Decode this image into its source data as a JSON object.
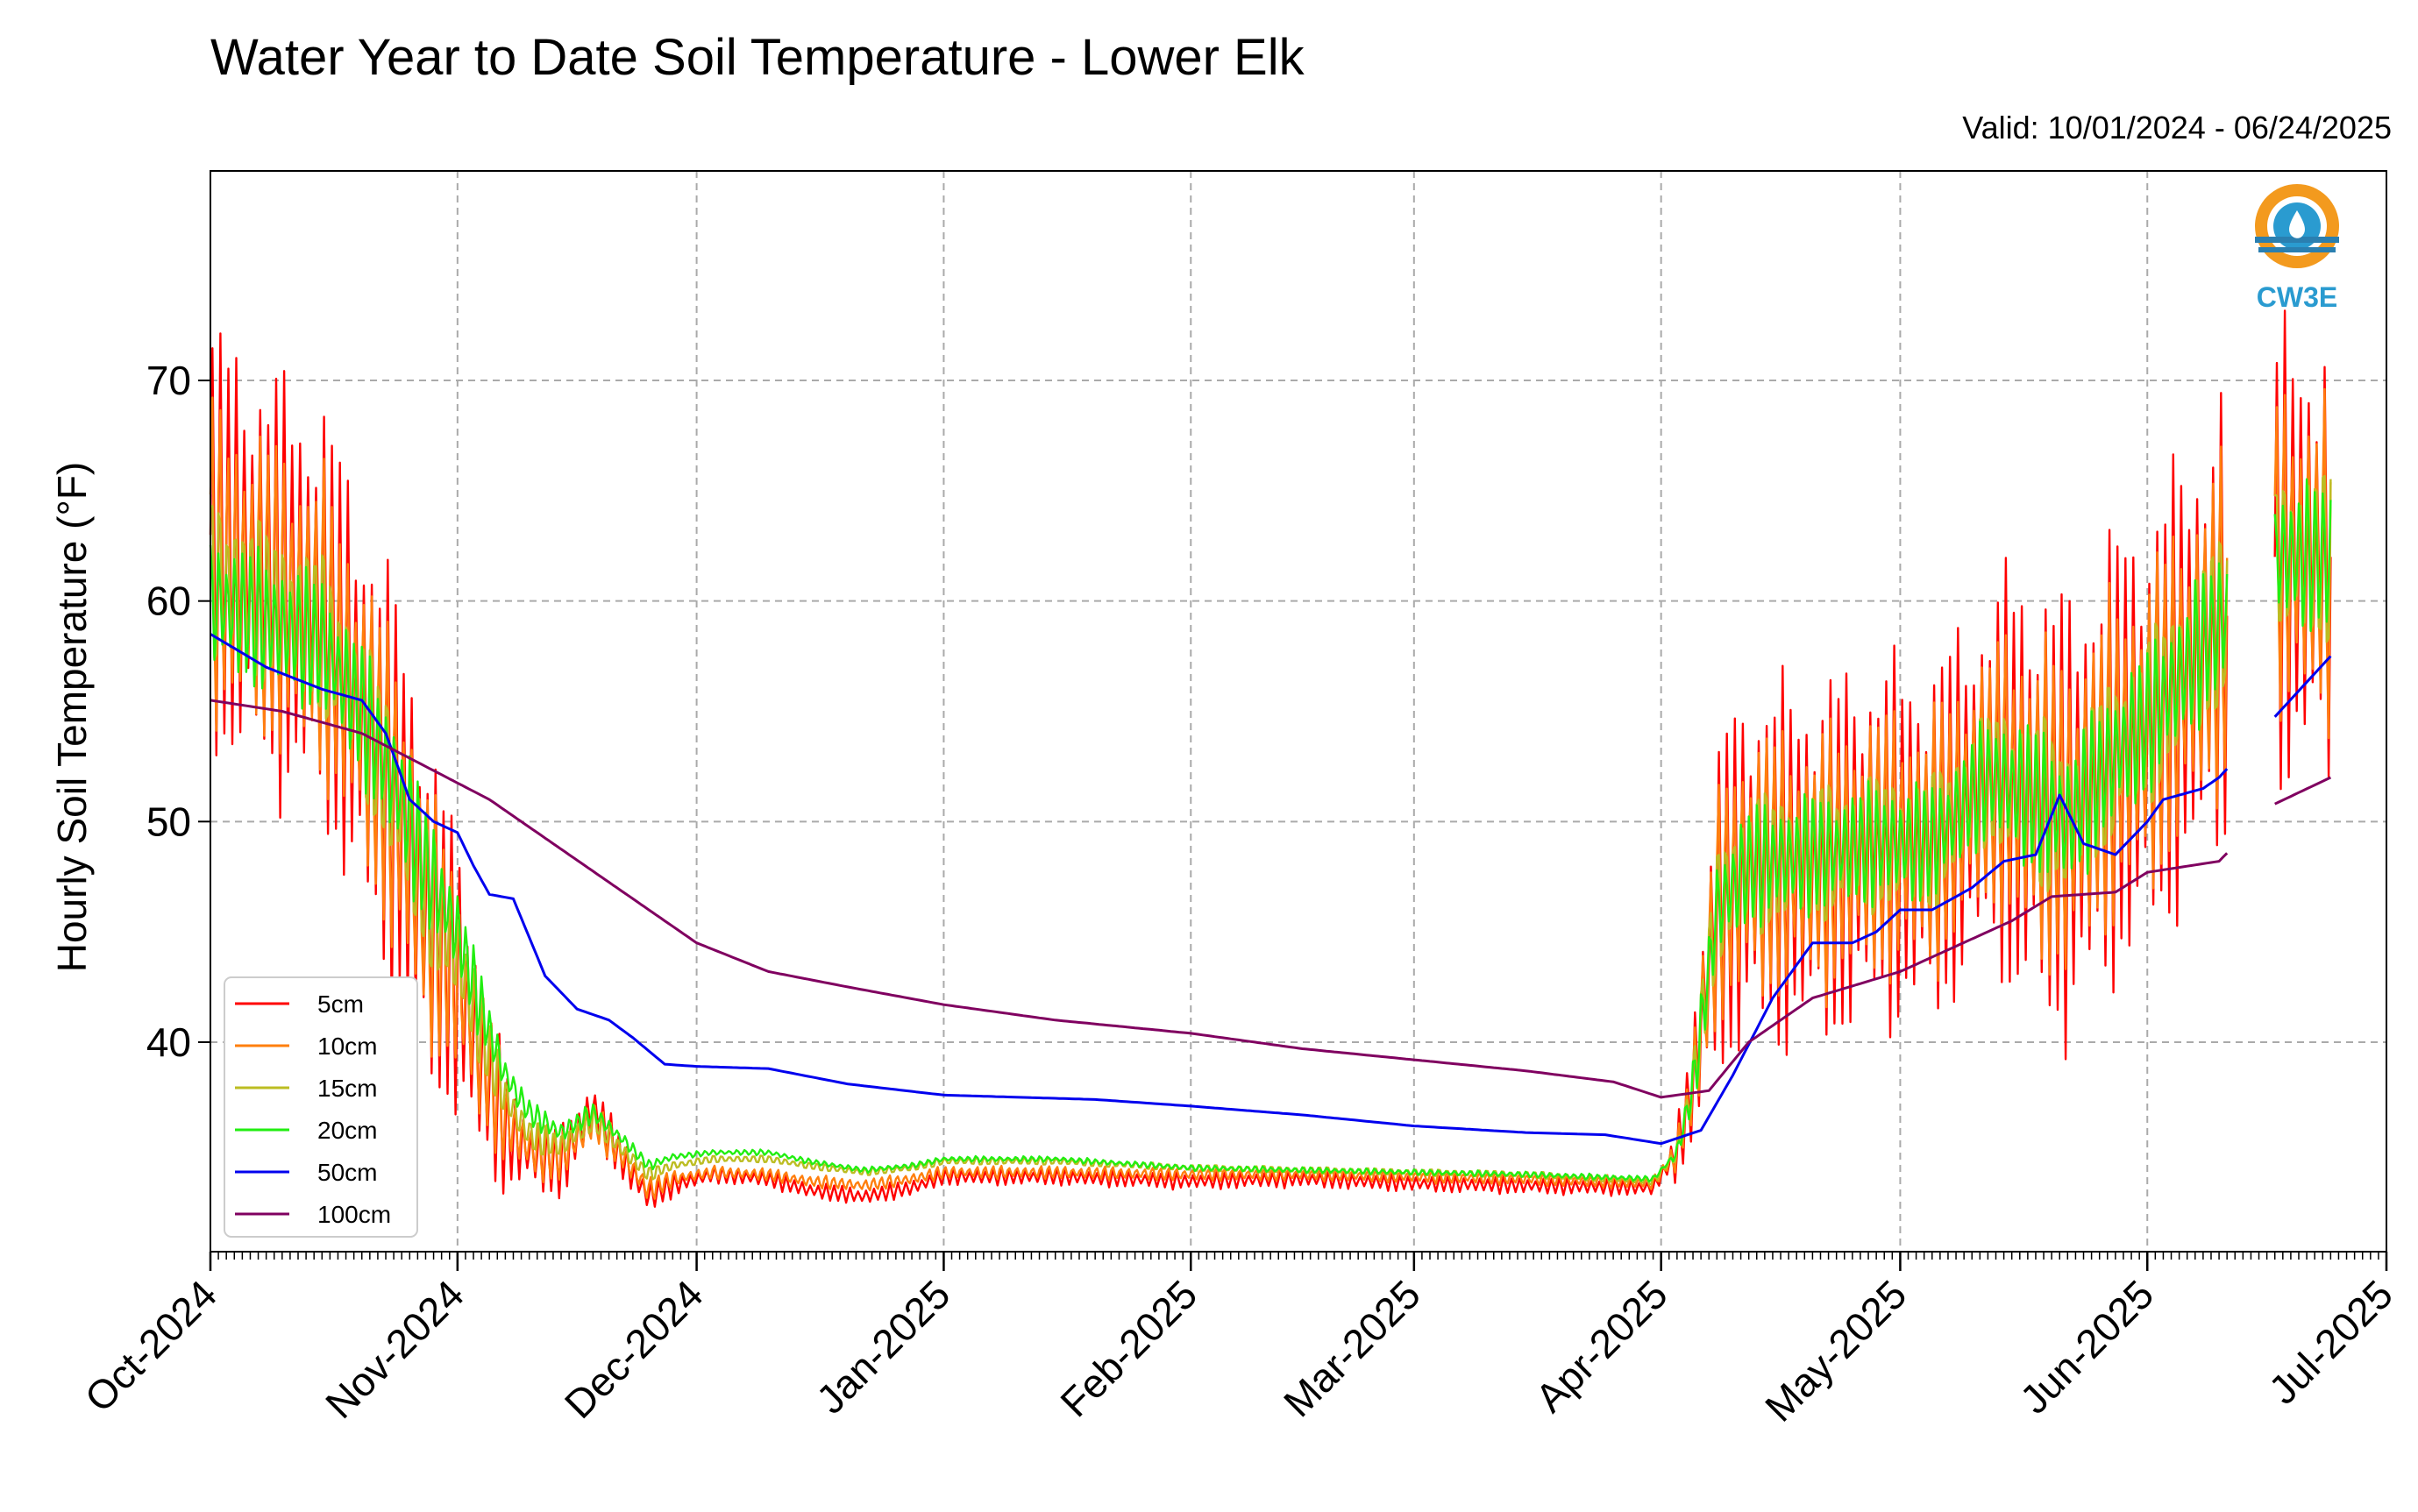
{
  "chart_data": {
    "type": "line",
    "title": "Water Year to Date Soil Temperature - Lower Elk",
    "subtitle": "Valid: 10/01/2024 - 06/24/2025",
    "ylabel": "Hourly Soil Temperature (°F)",
    "xlabel": "",
    "xlim": [
      "2024-10-01",
      "2025-07-01"
    ],
    "ylim": [
      30.5,
      79.5
    ],
    "yticks": [
      40,
      50,
      60,
      70
    ],
    "xticks": [
      {
        "date": "2024-10-01",
        "label": "Oct-2024"
      },
      {
        "date": "2024-11-01",
        "label": "Nov-2024"
      },
      {
        "date": "2024-12-01",
        "label": "Dec-2024"
      },
      {
        "date": "2025-01-01",
        "label": "Jan-2025"
      },
      {
        "date": "2025-02-01",
        "label": "Feb-2025"
      },
      {
        "date": "2025-03-01",
        "label": "Mar-2025"
      },
      {
        "date": "2025-04-01",
        "label": "Apr-2025"
      },
      {
        "date": "2025-05-01",
        "label": "May-2025"
      },
      {
        "date": "2025-06-01",
        "label": "Jun-2025"
      },
      {
        "date": "2025-07-01",
        "label": "Jul-2025"
      }
    ],
    "grid": true,
    "legend_position": "lower-left",
    "series": [
      {
        "name": "5cm",
        "color": "#ff0000",
        "amp": 1.0,
        "points": [
          [
            "2024-10-01",
            63
          ],
          [
            "2024-10-08",
            61
          ],
          [
            "2024-10-15",
            59.5
          ],
          [
            "2024-10-20",
            55
          ],
          [
            "2024-10-25",
            50
          ],
          [
            "2024-10-28",
            46
          ],
          [
            "2024-11-01",
            43
          ],
          [
            "2024-11-04",
            39
          ],
          [
            "2024-11-07",
            36
          ],
          [
            "2024-11-10",
            35
          ],
          [
            "2024-11-14",
            34.5
          ],
          [
            "2024-11-18",
            37
          ],
          [
            "2024-11-22",
            34.5
          ],
          [
            "2024-11-25",
            33
          ],
          [
            "2024-11-28",
            33.5
          ],
          [
            "2024-12-03",
            34
          ],
          [
            "2024-12-10",
            33.8
          ],
          [
            "2024-12-15",
            33.3
          ],
          [
            "2024-12-22",
            33
          ],
          [
            "2024-12-28",
            33.4
          ],
          [
            "2025-01-01",
            33.9
          ],
          [
            "2025-01-15",
            33.9
          ],
          [
            "2025-02-01",
            33.7
          ],
          [
            "2025-02-15",
            33.8
          ],
          [
            "2025-03-01",
            33.6
          ],
          [
            "2025-03-15",
            33.5
          ],
          [
            "2025-03-31",
            33.4
          ],
          [
            "2025-04-03",
            35
          ],
          [
            "2025-04-05",
            38
          ],
          [
            "2025-04-08",
            46
          ],
          [
            "2025-04-12",
            48
          ],
          [
            "2025-04-20",
            48
          ],
          [
            "2025-04-28",
            49
          ],
          [
            "2025-05-05",
            49
          ],
          [
            "2025-05-12",
            52
          ],
          [
            "2025-05-18",
            51
          ],
          [
            "2025-05-22",
            50
          ],
          [
            "2025-05-28",
            53
          ],
          [
            "2025-06-01",
            54
          ],
          [
            "2025-06-16",
            62
          ],
          [
            "2025-06-24",
            62
          ]
        ]
      },
      {
        "name": "10cm",
        "color": "#ff7f0e",
        "amp": 0.8,
        "points": [
          [
            "2024-10-01",
            62
          ],
          [
            "2024-10-08",
            60.5
          ],
          [
            "2024-10-15",
            59
          ],
          [
            "2024-10-20",
            55
          ],
          [
            "2024-10-25",
            50
          ],
          [
            "2024-10-28",
            46
          ],
          [
            "2024-11-01",
            43
          ],
          [
            "2024-11-04",
            39.5
          ],
          [
            "2024-11-07",
            36.5
          ],
          [
            "2024-11-10",
            35.2
          ],
          [
            "2024-11-14",
            34.8
          ],
          [
            "2024-11-18",
            36.5
          ],
          [
            "2024-11-22",
            34.7
          ],
          [
            "2024-11-25",
            33.3
          ],
          [
            "2024-11-28",
            33.8
          ],
          [
            "2024-12-03",
            34.1
          ],
          [
            "2024-12-10",
            34
          ],
          [
            "2024-12-15",
            33.7
          ],
          [
            "2024-12-22",
            33.5
          ],
          [
            "2024-12-28",
            33.8
          ],
          [
            "2025-01-01",
            34.1
          ],
          [
            "2025-01-15",
            34.1
          ],
          [
            "2025-02-01",
            34
          ],
          [
            "2025-02-15",
            34
          ],
          [
            "2025-03-01",
            33.9
          ],
          [
            "2025-03-15",
            33.8
          ],
          [
            "2025-03-31",
            33.6
          ],
          [
            "2025-04-03",
            35
          ],
          [
            "2025-04-05",
            38
          ],
          [
            "2025-04-08",
            46
          ],
          [
            "2025-04-12",
            48
          ],
          [
            "2025-04-20",
            48
          ],
          [
            "2025-04-28",
            49
          ],
          [
            "2025-05-05",
            49
          ],
          [
            "2025-05-12",
            52
          ],
          [
            "2025-05-18",
            51
          ],
          [
            "2025-05-22",
            50
          ],
          [
            "2025-05-28",
            53
          ],
          [
            "2025-06-01",
            54
          ],
          [
            "2025-06-16",
            62
          ],
          [
            "2025-06-24",
            62
          ]
        ]
      },
      {
        "name": "15cm",
        "color": "#bcbd22",
        "amp": 0.5,
        "points": [
          [
            "2024-10-01",
            61
          ],
          [
            "2024-10-08",
            59.8
          ],
          [
            "2024-10-15",
            58.5
          ],
          [
            "2024-10-20",
            55
          ],
          [
            "2024-10-25",
            50.5
          ],
          [
            "2024-10-28",
            47
          ],
          [
            "2024-11-01",
            44
          ],
          [
            "2024-11-04",
            40.5
          ],
          [
            "2024-11-07",
            37.5
          ],
          [
            "2024-11-10",
            35.8
          ],
          [
            "2024-11-14",
            35.3
          ],
          [
            "2024-11-18",
            36.5
          ],
          [
            "2024-11-22",
            35
          ],
          [
            "2024-11-25",
            34
          ],
          [
            "2024-11-28",
            34.4
          ],
          [
            "2024-12-03",
            34.7
          ],
          [
            "2024-12-10",
            34.7
          ],
          [
            "2024-12-15",
            34.4
          ],
          [
            "2024-12-22",
            34.1
          ],
          [
            "2024-12-28",
            34.3
          ],
          [
            "2025-01-01",
            34.6
          ],
          [
            "2025-01-15",
            34.6
          ],
          [
            "2025-02-01",
            34.3
          ],
          [
            "2025-02-15",
            34.2
          ],
          [
            "2025-03-01",
            34.1
          ],
          [
            "2025-03-15",
            34
          ],
          [
            "2025-03-31",
            33.7
          ],
          [
            "2025-04-03",
            35
          ],
          [
            "2025-04-05",
            38
          ],
          [
            "2025-04-08",
            46
          ],
          [
            "2025-04-12",
            48
          ],
          [
            "2025-04-20",
            48.5
          ],
          [
            "2025-04-28",
            49
          ],
          [
            "2025-05-05",
            49
          ],
          [
            "2025-05-12",
            52
          ],
          [
            "2025-05-18",
            51
          ],
          [
            "2025-05-22",
            50
          ],
          [
            "2025-05-28",
            53
          ],
          [
            "2025-06-01",
            54.5
          ],
          [
            "2025-06-16",
            62
          ],
          [
            "2025-06-24",
            62
          ]
        ]
      },
      {
        "name": "20cm",
        "color": "#22ee11",
        "amp": 0.35,
        "points": [
          [
            "2024-10-01",
            60
          ],
          [
            "2024-10-08",
            59
          ],
          [
            "2024-10-15",
            58
          ],
          [
            "2024-10-20",
            55
          ],
          [
            "2024-10-25",
            51
          ],
          [
            "2024-10-28",
            48
          ],
          [
            "2024-11-01",
            45
          ],
          [
            "2024-11-04",
            41.5
          ],
          [
            "2024-11-07",
            38.5
          ],
          [
            "2024-11-10",
            36.8
          ],
          [
            "2024-11-14",
            35.9
          ],
          [
            "2024-11-18",
            36.8
          ],
          [
            "2024-11-22",
            35.5
          ],
          [
            "2024-11-25",
            34.4
          ],
          [
            "2024-11-28",
            34.8
          ],
          [
            "2024-12-03",
            35
          ],
          [
            "2024-12-10",
            35
          ],
          [
            "2024-12-15",
            34.6
          ],
          [
            "2024-12-22",
            34.2
          ],
          [
            "2024-12-28",
            34.4
          ],
          [
            "2025-01-01",
            34.7
          ],
          [
            "2025-01-15",
            34.7
          ],
          [
            "2025-02-01",
            34.3
          ],
          [
            "2025-02-15",
            34.2
          ],
          [
            "2025-03-01",
            34.1
          ],
          [
            "2025-03-15",
            34
          ],
          [
            "2025-03-31",
            33.8
          ],
          [
            "2025-04-03",
            35
          ],
          [
            "2025-04-05",
            38
          ],
          [
            "2025-04-08",
            46
          ],
          [
            "2025-04-12",
            48
          ],
          [
            "2025-04-20",
            48.5
          ],
          [
            "2025-04-28",
            49
          ],
          [
            "2025-05-05",
            49
          ],
          [
            "2025-05-12",
            52
          ],
          [
            "2025-05-18",
            51
          ],
          [
            "2025-05-22",
            50
          ],
          [
            "2025-05-28",
            53
          ],
          [
            "2025-06-01",
            54.5
          ],
          [
            "2025-06-16",
            62
          ],
          [
            "2025-06-24",
            62
          ]
        ]
      },
      {
        "name": "50cm",
        "color": "#0000ee",
        "amp": 0,
        "points": [
          [
            "2024-10-01",
            58.5
          ],
          [
            "2024-10-08",
            57
          ],
          [
            "2024-10-15",
            56
          ],
          [
            "2024-10-20",
            55.5
          ],
          [
            "2024-10-23",
            54
          ],
          [
            "2024-10-26",
            51
          ],
          [
            "2024-10-29",
            50
          ],
          [
            "2024-11-01",
            49.5
          ],
          [
            "2024-11-03",
            48
          ],
          [
            "2024-11-05",
            46.7
          ],
          [
            "2024-11-08",
            46.5
          ],
          [
            "2024-11-12",
            43
          ],
          [
            "2024-11-16",
            41.5
          ],
          [
            "2024-11-20",
            41
          ],
          [
            "2024-11-23",
            40.2
          ],
          [
            "2024-11-27",
            39
          ],
          [
            "2024-12-01",
            38.9
          ],
          [
            "2024-12-10",
            38.8
          ],
          [
            "2024-12-20",
            38.1
          ],
          [
            "2025-01-01",
            37.6
          ],
          [
            "2025-01-20",
            37.4
          ],
          [
            "2025-02-01",
            37.1
          ],
          [
            "2025-02-15",
            36.7
          ],
          [
            "2025-03-01",
            36.2
          ],
          [
            "2025-03-15",
            35.9
          ],
          [
            "2025-03-25",
            35.8
          ],
          [
            "2025-04-01",
            35.4
          ],
          [
            "2025-04-06",
            36
          ],
          [
            "2025-04-10",
            38.5
          ],
          [
            "2025-04-15",
            42
          ],
          [
            "2025-04-20",
            44.5
          ],
          [
            "2025-04-25",
            44.5
          ],
          [
            "2025-04-28",
            45
          ],
          [
            "2025-05-01",
            46
          ],
          [
            "2025-05-05",
            46
          ],
          [
            "2025-05-10",
            47
          ],
          [
            "2025-05-14",
            48.2
          ],
          [
            "2025-05-18",
            48.5
          ],
          [
            "2025-05-21",
            51.2
          ],
          [
            "2025-05-24",
            49
          ],
          [
            "2025-05-28",
            48.5
          ],
          [
            "2025-06-01",
            50
          ],
          [
            "2025-06-03",
            51
          ],
          [
            "2025-06-08",
            51.5
          ],
          [
            "2025-06-10",
            52
          ],
          [
            "2025-06-24",
            57.5
          ]
        ]
      },
      {
        "name": "100cm",
        "color": "#800060",
        "amp": 0,
        "points": [
          [
            "2024-10-01",
            55.5
          ],
          [
            "2024-10-10",
            55
          ],
          [
            "2024-10-20",
            54
          ],
          [
            "2024-10-28",
            52.5
          ],
          [
            "2024-11-05",
            51
          ],
          [
            "2024-11-15",
            48.5
          ],
          [
            "2024-11-25",
            46
          ],
          [
            "2024-12-01",
            44.5
          ],
          [
            "2024-12-10",
            43.2
          ],
          [
            "2024-12-20",
            42.5
          ],
          [
            "2025-01-01",
            41.7
          ],
          [
            "2025-01-15",
            41
          ],
          [
            "2025-02-01",
            40.4
          ],
          [
            "2025-02-15",
            39.7
          ],
          [
            "2025-03-01",
            39.2
          ],
          [
            "2025-03-15",
            38.7
          ],
          [
            "2025-03-26",
            38.2
          ],
          [
            "2025-04-01",
            37.5
          ],
          [
            "2025-04-07",
            37.8
          ],
          [
            "2025-04-12",
            40
          ],
          [
            "2025-04-20",
            42
          ],
          [
            "2025-05-01",
            43.2
          ],
          [
            "2025-05-15",
            45.5
          ],
          [
            "2025-05-20",
            46.6
          ],
          [
            "2025-05-28",
            46.8
          ],
          [
            "2025-06-01",
            47.7
          ],
          [
            "2025-06-10",
            48.2
          ],
          [
            "2025-06-17",
            50.8
          ],
          [
            "2025-06-24",
            52
          ]
        ]
      }
    ],
    "gap": [
      "2025-06-11",
      "2025-06-17"
    ],
    "logo": {
      "text": "CW3E",
      "icon": "water-drop-logo-icon"
    }
  }
}
